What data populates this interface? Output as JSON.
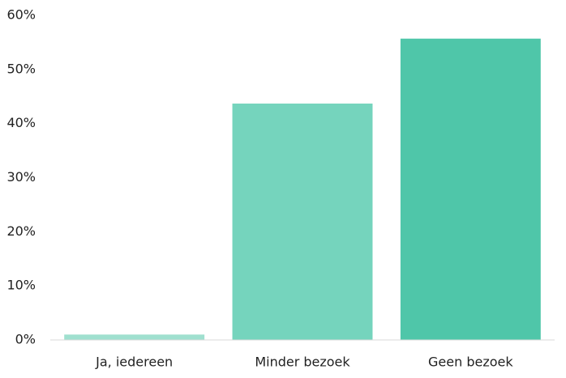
{
  "chart_data": {
    "type": "bar",
    "categories": [
      "Ja, iedereen",
      "Minder bezoek",
      "Geen bezoek"
    ],
    "values": [
      1.0,
      43.7,
      55.7
    ],
    "colors": [
      "#9fe0cf",
      "#75d4bd",
      "#4fc6a9"
    ],
    "ylim": [
      0,
      60
    ],
    "yticks": [
      {
        "value": 0,
        "label": "0%"
      },
      {
        "value": 10,
        "label": "10%"
      },
      {
        "value": 20,
        "label": "20%"
      },
      {
        "value": 30,
        "label": "30%"
      },
      {
        "value": 40,
        "label": "40%"
      },
      {
        "value": 50,
        "label": "50%"
      },
      {
        "value": 60,
        "label": "60%"
      }
    ],
    "grid": false
  }
}
